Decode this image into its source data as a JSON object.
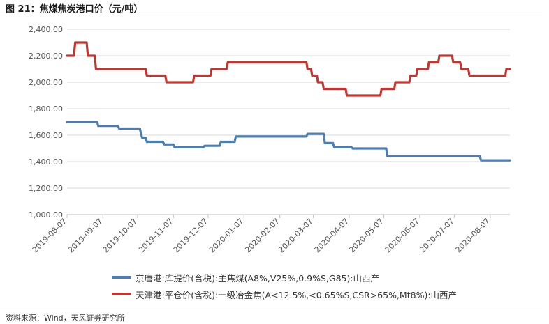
{
  "header": {
    "title": "图 21：焦煤焦炭港口价（元/吨）"
  },
  "footer": {
    "source": "资料来源：Wind，天风证券研究所"
  },
  "chart_data": {
    "type": "line",
    "ylim": [
      1000,
      2400
    ],
    "yticks": [
      "1,000.00",
      "1,200.00",
      "1,400.00",
      "1,600.00",
      "1,800.00",
      "2,000.00",
      "2,200.00",
      "2,400.00"
    ],
    "ytick_values": [
      1000,
      1200,
      1400,
      1600,
      1800,
      2000,
      2200,
      2400
    ],
    "xlim": [
      "2019-08-07",
      "2020-08-24"
    ],
    "xticks": [
      "2019-08-07",
      "2019-09-07",
      "2019-10-07",
      "2019-11-07",
      "2019-12-07",
      "2020-01-07",
      "2020-02-07",
      "2020-03-07",
      "2020-04-07",
      "2020-05-07",
      "2020-06-07",
      "2020-07-07",
      "2020-08-07"
    ],
    "grid": true,
    "legend_position": "bottom",
    "series": [
      {
        "name": "京唐港:库提价(含税):主焦煤(A8%,V25%,0.9%S,G85):山西产",
        "color": "#4f7eae",
        "points": [
          [
            "2019-08-07",
            1700
          ],
          [
            "2019-09-02",
            1700
          ],
          [
            "2019-09-03",
            1670
          ],
          [
            "2019-09-20",
            1670
          ],
          [
            "2019-09-21",
            1650
          ],
          [
            "2019-10-09",
            1650
          ],
          [
            "2019-10-10",
            1610
          ],
          [
            "2019-10-11",
            1580
          ],
          [
            "2019-10-14",
            1580
          ],
          [
            "2019-10-15",
            1550
          ],
          [
            "2019-10-29",
            1550
          ],
          [
            "2019-10-30",
            1530
          ],
          [
            "2019-11-07",
            1530
          ],
          [
            "2019-11-08",
            1510
          ],
          [
            "2019-12-03",
            1510
          ],
          [
            "2019-12-04",
            1520
          ],
          [
            "2019-12-17",
            1520
          ],
          [
            "2019-12-18",
            1550
          ],
          [
            "2019-12-30",
            1550
          ],
          [
            "2019-12-31",
            1590
          ],
          [
            "2020-03-01",
            1590
          ],
          [
            "2020-03-02",
            1610
          ],
          [
            "2020-03-16",
            1610
          ],
          [
            "2020-03-17",
            1540
          ],
          [
            "2020-03-24",
            1540
          ],
          [
            "2020-03-25",
            1510
          ],
          [
            "2020-04-09",
            1510
          ],
          [
            "2020-04-10",
            1500
          ],
          [
            "2020-05-09",
            1500
          ],
          [
            "2020-05-10",
            1440
          ],
          [
            "2020-07-29",
            1440
          ],
          [
            "2020-07-30",
            1410
          ],
          [
            "2020-08-24",
            1410
          ]
        ]
      },
      {
        "name": "天津港:平仓价(含税):一级冶金焦(A<12.5%,<0.65%S,CSR>65%,Mt8%):山西产",
        "color": "#b93a35",
        "points": [
          [
            "2019-08-07",
            2200
          ],
          [
            "2019-08-13",
            2200
          ],
          [
            "2019-08-14",
            2300
          ],
          [
            "2019-08-24",
            2300
          ],
          [
            "2019-08-25",
            2200
          ],
          [
            "2019-08-31",
            2200
          ],
          [
            "2019-09-01",
            2100
          ],
          [
            "2019-10-14",
            2100
          ],
          [
            "2019-10-15",
            2050
          ],
          [
            "2019-10-31",
            2050
          ],
          [
            "2019-11-01",
            2000
          ],
          [
            "2019-11-24",
            2000
          ],
          [
            "2019-11-25",
            2050
          ],
          [
            "2019-12-09",
            2050
          ],
          [
            "2019-12-10",
            2100
          ],
          [
            "2019-12-23",
            2100
          ],
          [
            "2019-12-24",
            2150
          ],
          [
            "2020-03-01",
            2150
          ],
          [
            "2020-03-02",
            2100
          ],
          [
            "2020-03-05",
            2100
          ],
          [
            "2020-03-06",
            2050
          ],
          [
            "2020-03-10",
            2050
          ],
          [
            "2020-03-11",
            2000
          ],
          [
            "2020-03-15",
            2000
          ],
          [
            "2020-03-16",
            1950
          ],
          [
            "2020-04-04",
            1950
          ],
          [
            "2020-04-05",
            1900
          ],
          [
            "2020-05-04",
            1900
          ],
          [
            "2020-05-05",
            1950
          ],
          [
            "2020-05-16",
            1950
          ],
          [
            "2020-05-17",
            2000
          ],
          [
            "2020-05-29",
            2000
          ],
          [
            "2020-05-30",
            2050
          ],
          [
            "2020-06-04",
            2050
          ],
          [
            "2020-06-05",
            2100
          ],
          [
            "2020-06-14",
            2100
          ],
          [
            "2020-06-15",
            2150
          ],
          [
            "2020-06-23",
            2150
          ],
          [
            "2020-06-24",
            2200
          ],
          [
            "2020-07-05",
            2200
          ],
          [
            "2020-07-06",
            2150
          ],
          [
            "2020-07-12",
            2150
          ],
          [
            "2020-07-13",
            2100
          ],
          [
            "2020-07-19",
            2100
          ],
          [
            "2020-07-20",
            2050
          ],
          [
            "2020-08-20",
            2050
          ],
          [
            "2020-08-21",
            2100
          ],
          [
            "2020-08-24",
            2100
          ]
        ]
      }
    ]
  }
}
